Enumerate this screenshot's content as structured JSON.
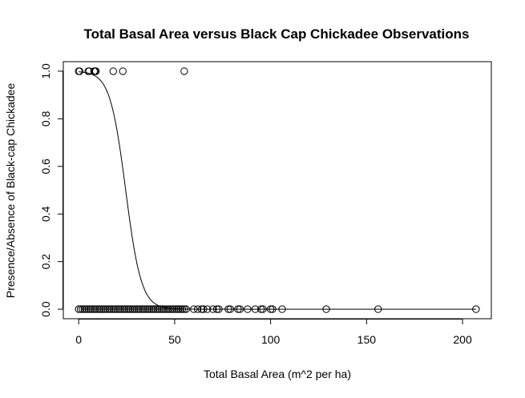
{
  "chart_data": {
    "type": "scatter",
    "title": "Total Basal Area versus Black Cap Chickadee Observations",
    "xlabel": "Total Basal Area (m^2 per ha)",
    "ylabel": "Presence/Absence of Black-cap Chickadee",
    "xlim": [
      -8,
      215
    ],
    "ylim": [
      -0.04,
      1.04
    ],
    "x_ticks": [
      "0",
      "50",
      "100",
      "150",
      "200"
    ],
    "x_tick_values": [
      0,
      50,
      100,
      150,
      200
    ],
    "y_ticks": [
      "0.0",
      "0.2",
      "0.4",
      "0.6",
      "0.8",
      "1.0"
    ],
    "y_tick_values": [
      0,
      0.2,
      0.4,
      0.6,
      0.8,
      1.0
    ],
    "grid": false,
    "legend": "none",
    "points": {
      "x": [
        0,
        0.5,
        5,
        5.5,
        8,
        8.5,
        9,
        18,
        23,
        55,
        0,
        1,
        2,
        3,
        4,
        5,
        6,
        7,
        8,
        9,
        10,
        11,
        12,
        13,
        14,
        15,
        16,
        17,
        18,
        19,
        20,
        21,
        22,
        23,
        24,
        25,
        26,
        27,
        28,
        29,
        30,
        31,
        32,
        33,
        34,
        35,
        36,
        37,
        38,
        39,
        40,
        41,
        42,
        43,
        44,
        45,
        46,
        47,
        48,
        49,
        50,
        51,
        52,
        53,
        54,
        55,
        56,
        60,
        62,
        64,
        65,
        67,
        70,
        72,
        73,
        78,
        79,
        83,
        84,
        88,
        92,
        95,
        96,
        100,
        101,
        106,
        129,
        156,
        207
      ],
      "y": [
        1,
        1,
        1,
        1,
        1,
        1,
        1,
        1,
        1,
        1,
        0,
        0,
        0,
        0,
        0,
        0,
        0,
        0,
        0,
        0,
        0,
        0,
        0,
        0,
        0,
        0,
        0,
        0,
        0,
        0,
        0,
        0,
        0,
        0,
        0,
        0,
        0,
        0,
        0,
        0,
        0,
        0,
        0,
        0,
        0,
        0,
        0,
        0,
        0,
        0,
        0,
        0,
        0,
        0,
        0,
        0,
        0,
        0,
        0,
        0,
        0,
        0,
        0,
        0,
        0,
        0,
        0,
        0,
        0,
        0,
        0,
        0,
        0,
        0,
        0,
        0,
        0,
        0,
        0,
        0,
        0,
        0,
        0,
        0,
        0,
        0,
        0,
        0,
        0
      ]
    },
    "fitted_curve": {
      "type": "logistic",
      "intercept": 6.0,
      "slope": -0.245,
      "x_range": [
        0,
        207
      ]
    }
  }
}
